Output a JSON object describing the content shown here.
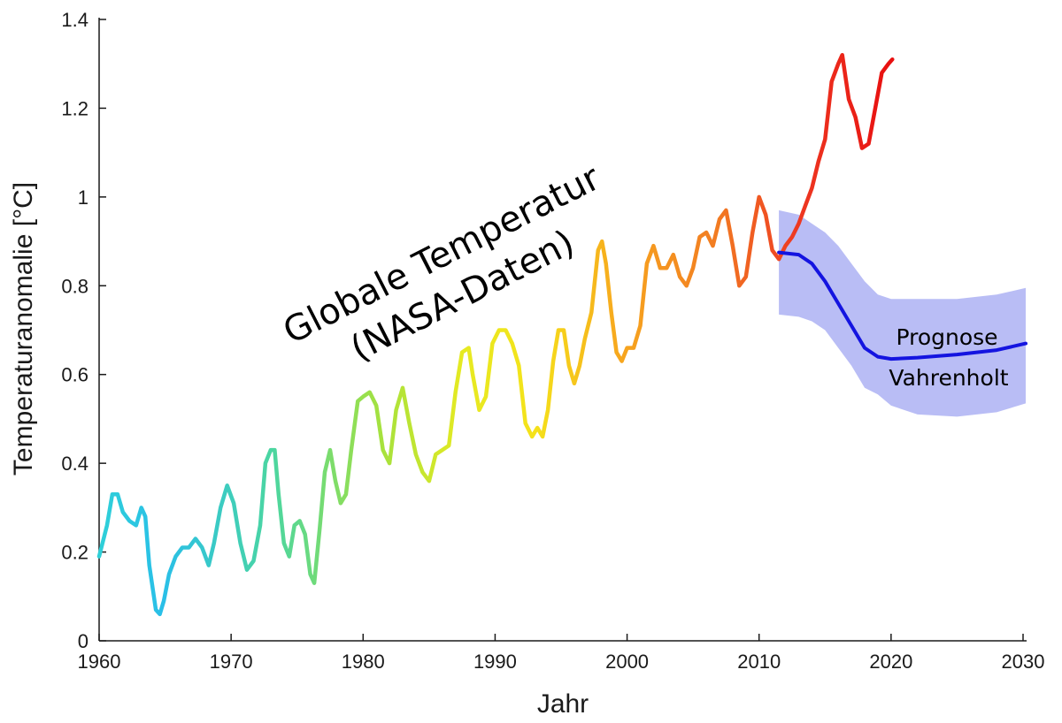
{
  "chart_data": {
    "type": "line",
    "title": "",
    "xlabel": "Jahr",
    "ylabel": "Temperaturanomalie [°C]",
    "xlim": [
      1960,
      2030
    ],
    "ylim": [
      0,
      1.4
    ],
    "xticks": [
      1960,
      1970,
      1980,
      1990,
      2000,
      2010,
      2020,
      2030
    ],
    "yticks": [
      0,
      0.2,
      0.4,
      0.6,
      0.8,
      1,
      1.2,
      1.4
    ],
    "xtick_labels": [
      "1960",
      "1970",
      "1980",
      "1990",
      "2000",
      "2010",
      "2020",
      "2030"
    ],
    "ytick_labels": [
      "0",
      "0.2",
      "0.4",
      "0.6",
      "0.8",
      "1",
      "1.2",
      "1.4"
    ],
    "grid": false,
    "annotations": {
      "observed_line1": "Globale Temperatur",
      "observed_line2": "(NASA-Daten)",
      "forecast_line1": "Prognose",
      "forecast_line2": "Vahrenholt"
    },
    "series": [
      {
        "name": "Globale Temperatur (NASA-Daten)",
        "style": "rainbow-gradient line (cyan → green → yellow → orange → red over time)",
        "x": [
          1960.0,
          1960.6,
          1961.0,
          1961.4,
          1961.8,
          1962.3,
          1962.8,
          1963.2,
          1963.5,
          1963.8,
          1964.3,
          1964.6,
          1964.9,
          1965.3,
          1965.8,
          1966.3,
          1966.8,
          1967.3,
          1967.8,
          1968.3,
          1968.7,
          1969.2,
          1969.7,
          1970.2,
          1970.7,
          1971.2,
          1971.7,
          1972.2,
          1972.6,
          1973.0,
          1973.3,
          1973.6,
          1974.0,
          1974.4,
          1974.8,
          1975.2,
          1975.6,
          1976.0,
          1976.3,
          1976.7,
          1977.1,
          1977.5,
          1977.9,
          1978.3,
          1978.7,
          1979.1,
          1979.6,
          1980.0,
          1980.5,
          1981.0,
          1981.5,
          1982.0,
          1982.5,
          1983.0,
          1983.5,
          1984.0,
          1984.5,
          1985.0,
          1985.5,
          1986.0,
          1986.5,
          1987.0,
          1987.5,
          1988.0,
          1988.3,
          1988.8,
          1989.3,
          1989.8,
          1990.3,
          1990.8,
          1991.3,
          1991.8,
          1992.3,
          1992.8,
          1993.2,
          1993.6,
          1994.0,
          1994.4,
          1994.8,
          1995.2,
          1995.6,
          1996.0,
          1996.4,
          1996.8,
          1997.3,
          1997.8,
          1998.1,
          1998.4,
          1998.8,
          1999.2,
          1999.6,
          2000.0,
          2000.5,
          2001.0,
          2001.5,
          2002.0,
          2002.5,
          2003.0,
          2003.5,
          2004.0,
          2004.5,
          2005.0,
          2005.5,
          2006.0,
          2006.5,
          2007.0,
          2007.5,
          2008.0,
          2008.5,
          2009.0,
          2009.5,
          2010.0,
          2010.5,
          2011.0,
          2011.5,
          2012.0,
          2012.5,
          2013.0,
          2013.5,
          2014.0,
          2014.5,
          2015.0,
          2015.5,
          2016.0,
          2016.3,
          2016.8,
          2017.3,
          2017.8,
          2018.3,
          2018.8,
          2019.3,
          2019.8,
          2020.1
        ],
        "values": [
          0.19,
          0.26,
          0.33,
          0.33,
          0.29,
          0.27,
          0.26,
          0.3,
          0.28,
          0.17,
          0.07,
          0.06,
          0.09,
          0.15,
          0.19,
          0.21,
          0.21,
          0.23,
          0.21,
          0.17,
          0.22,
          0.3,
          0.35,
          0.31,
          0.22,
          0.16,
          0.18,
          0.26,
          0.4,
          0.43,
          0.43,
          0.33,
          0.22,
          0.19,
          0.26,
          0.27,
          0.24,
          0.15,
          0.13,
          0.25,
          0.38,
          0.43,
          0.36,
          0.31,
          0.33,
          0.43,
          0.54,
          0.55,
          0.56,
          0.53,
          0.43,
          0.4,
          0.52,
          0.57,
          0.49,
          0.42,
          0.38,
          0.36,
          0.42,
          0.43,
          0.44,
          0.56,
          0.65,
          0.66,
          0.6,
          0.52,
          0.55,
          0.67,
          0.7,
          0.7,
          0.67,
          0.62,
          0.49,
          0.46,
          0.48,
          0.46,
          0.52,
          0.63,
          0.7,
          0.7,
          0.62,
          0.58,
          0.62,
          0.68,
          0.74,
          0.88,
          0.9,
          0.85,
          0.74,
          0.65,
          0.63,
          0.66,
          0.66,
          0.71,
          0.85,
          0.89,
          0.84,
          0.84,
          0.87,
          0.82,
          0.8,
          0.84,
          0.91,
          0.92,
          0.89,
          0.95,
          0.97,
          0.89,
          0.8,
          0.82,
          0.92,
          1.0,
          0.96,
          0.88,
          0.86,
          0.89,
          0.91,
          0.94,
          0.98,
          1.02,
          1.08,
          1.13,
          1.26,
          1.3,
          1.32,
          1.22,
          1.18,
          1.11,
          1.12,
          1.2,
          1.28,
          1.3,
          1.31
        ]
      },
      {
        "name": "Prognose Vahrenholt",
        "style": "blue line with shaded uncertainty band",
        "x": [
          2011.5,
          2013.0,
          2014.0,
          2015.0,
          2016.0,
          2017.0,
          2018.0,
          2019.0,
          2020.0,
          2022.0,
          2025.0,
          2028.0,
          2030.2
        ],
        "values": [
          0.875,
          0.87,
          0.85,
          0.81,
          0.76,
          0.71,
          0.66,
          0.64,
          0.635,
          0.638,
          0.645,
          0.655,
          0.67
        ],
        "band_upper": [
          0.97,
          0.96,
          0.94,
          0.92,
          0.89,
          0.85,
          0.81,
          0.78,
          0.77,
          0.77,
          0.77,
          0.78,
          0.795
        ],
        "band_lower": [
          0.735,
          0.73,
          0.72,
          0.7,
          0.66,
          0.62,
          0.57,
          0.555,
          0.53,
          0.51,
          0.505,
          0.515,
          0.535
        ]
      }
    ]
  }
}
